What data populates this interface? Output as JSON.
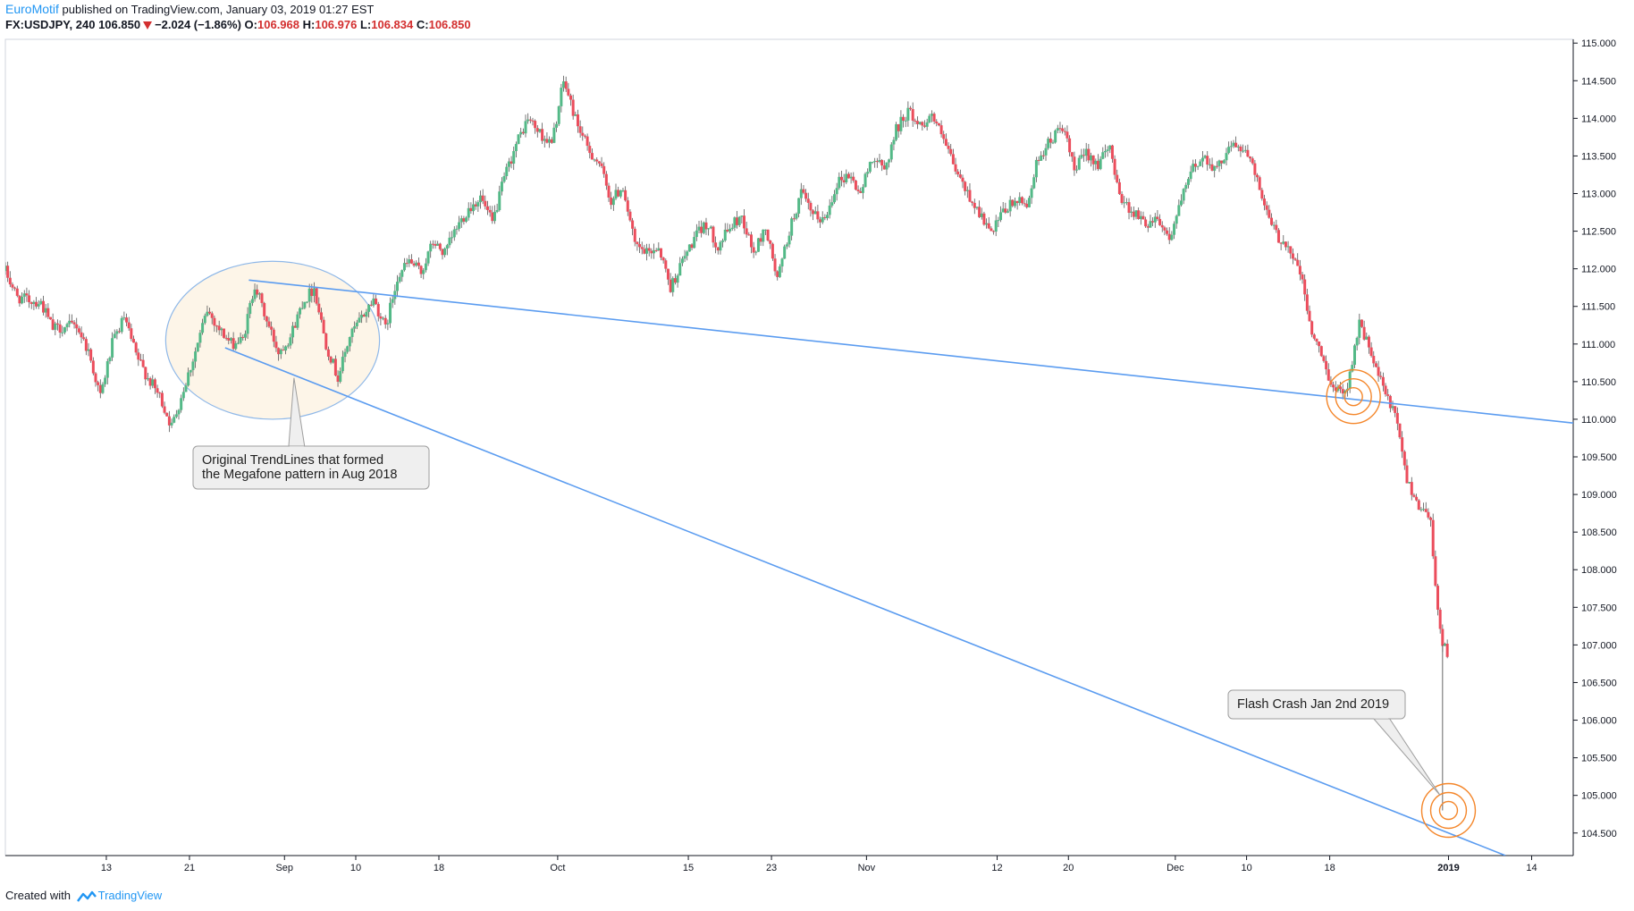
{
  "header": {
    "author": "EuroMotif",
    "published": "published on TradingView.com, January 03, 2019 01:27 EST",
    "symbol": "FX:USDJPY, 240",
    "last": "106.850",
    "change": "−2.024 (−1.86%)",
    "o_label": "O:",
    "o_value": "106.968",
    "h_label": "H:",
    "h_value": "106.976",
    "l_label": "L:",
    "l_value": "106.834",
    "c_label": "C:",
    "c_value": "106.850"
  },
  "footer": {
    "created_with": "Created with",
    "brand": "TradingView"
  },
  "colors": {
    "up": "#53b987",
    "down": "#eb4d5c",
    "trendline": "#5b9cf0",
    "ellipse_stroke": "#8fb8e8",
    "ellipse_fill": "#fdf5e8",
    "target": "#f4862a",
    "axis": "#131722",
    "callout_bg": "#efefef",
    "callout_border": "#9e9e9e"
  },
  "chart_data": {
    "type": "candlestick",
    "title": "FX:USDJPY, 240",
    "ylim": [
      104.2,
      115.05
    ],
    "y_ticks": [
      "115.000",
      "114.500",
      "114.000",
      "113.500",
      "113.000",
      "112.500",
      "112.000",
      "111.500",
      "111.000",
      "110.500",
      "110.000",
      "109.500",
      "109.000",
      "108.500",
      "108.000",
      "107.500",
      "107.000",
      "106.500",
      "106.000",
      "105.500",
      "105.000",
      "104.500"
    ],
    "x_ticks": [
      "13",
      "21",
      "Sep",
      "10",
      "18",
      "Oct",
      "15",
      "23",
      "Nov",
      "12",
      "20",
      "Dec",
      "10",
      "18",
      "2019",
      "14"
    ],
    "x_ticks_bold": [
      "2019"
    ],
    "x_tick_positions": [
      14.5,
      21.5,
      29.5,
      35.5,
      42.5,
      52.5,
      63.5,
      70.5,
      78.5,
      89.5,
      95.5,
      104.5,
      110.5,
      117.5,
      127.5,
      134.5
    ],
    "x_range": [
      6,
      138
    ],
    "path": [
      [
        6,
        111.97
      ],
      [
        7,
        111.62
      ],
      [
        9,
        111.55
      ],
      [
        10,
        111.2
      ],
      [
        12,
        111.25
      ],
      [
        13,
        110.9
      ],
      [
        14,
        110.3
      ],
      [
        15,
        111.0
      ],
      [
        16,
        111.35
      ],
      [
        17,
        110.85
      ],
      [
        18,
        110.55
      ],
      [
        19,
        110.3
      ],
      [
        20,
        109.9
      ],
      [
        21,
        110.4
      ],
      [
        22,
        110.9
      ],
      [
        23,
        111.45
      ],
      [
        24,
        111.2
      ],
      [
        25,
        111.0
      ],
      [
        26,
        111.05
      ],
      [
        27,
        111.8
      ],
      [
        28,
        111.3
      ],
      [
        29,
        110.9
      ],
      [
        30,
        111.1
      ],
      [
        31,
        111.55
      ],
      [
        32,
        111.75
      ],
      [
        33,
        111.0
      ],
      [
        34,
        110.55
      ],
      [
        35,
        111.1
      ],
      [
        36,
        111.35
      ],
      [
        37,
        111.6
      ],
      [
        38,
        111.2
      ],
      [
        39,
        111.9
      ],
      [
        40,
        112.1
      ],
      [
        41,
        111.95
      ],
      [
        42,
        112.35
      ],
      [
        43,
        112.2
      ],
      [
        44,
        112.55
      ],
      [
        45,
        112.8
      ],
      [
        46,
        112.95
      ],
      [
        47,
        112.6
      ],
      [
        48,
        113.2
      ],
      [
        49,
        113.65
      ],
      [
        50,
        114.0
      ],
      [
        51,
        113.8
      ],
      [
        52,
        113.65
      ],
      [
        53,
        114.5
      ],
      [
        54,
        114.0
      ],
      [
        55,
        113.6
      ],
      [
        56,
        113.4
      ],
      [
        57,
        112.9
      ],
      [
        58,
        113.1
      ],
      [
        59,
        112.3
      ],
      [
        60,
        112.2
      ],
      [
        61,
        112.3
      ],
      [
        62,
        111.75
      ],
      [
        63,
        112.1
      ],
      [
        64,
        112.4
      ],
      [
        65,
        112.6
      ],
      [
        66,
        112.3
      ],
      [
        67,
        112.55
      ],
      [
        68,
        112.7
      ],
      [
        69,
        112.2
      ],
      [
        70,
        112.55
      ],
      [
        71,
        111.85
      ],
      [
        72,
        112.5
      ],
      [
        73,
        113.0
      ],
      [
        74,
        112.7
      ],
      [
        75,
        112.65
      ],
      [
        76,
        113.15
      ],
      [
        77,
        113.25
      ],
      [
        78,
        113.0
      ],
      [
        79,
        113.5
      ],
      [
        80,
        113.3
      ],
      [
        81,
        113.85
      ],
      [
        82,
        114.1
      ],
      [
        83,
        113.9
      ],
      [
        84,
        114.05
      ],
      [
        85,
        113.7
      ],
      [
        86,
        113.3
      ],
      [
        87,
        113.0
      ],
      [
        88,
        112.75
      ],
      [
        89,
        112.45
      ],
      [
        90,
        112.75
      ],
      [
        91,
        112.9
      ],
      [
        92,
        112.85
      ],
      [
        93,
        113.5
      ],
      [
        94,
        113.7
      ],
      [
        95,
        113.9
      ],
      [
        96,
        113.3
      ],
      [
        97,
        113.55
      ],
      [
        98,
        113.4
      ],
      [
        99,
        113.6
      ],
      [
        100,
        112.9
      ],
      [
        101,
        112.75
      ],
      [
        102,
        112.6
      ],
      [
        103,
        112.7
      ],
      [
        104,
        112.4
      ],
      [
        105,
        112.9
      ],
      [
        106,
        113.35
      ],
      [
        107,
        113.5
      ],
      [
        108,
        113.3
      ],
      [
        109,
        113.65
      ],
      [
        110,
        113.6
      ],
      [
        111,
        113.45
      ],
      [
        112,
        112.8
      ],
      [
        113,
        112.45
      ],
      [
        114,
        112.3
      ],
      [
        115,
        111.95
      ],
      [
        116,
        111.15
      ],
      [
        117,
        110.75
      ],
      [
        118,
        110.35
      ],
      [
        119,
        110.45
      ],
      [
        120,
        111.3
      ],
      [
        121,
        110.85
      ],
      [
        122,
        110.4
      ],
      [
        123,
        110.05
      ],
      [
        124,
        109.2
      ],
      [
        125,
        108.85
      ],
      [
        126,
        108.7
      ],
      [
        126.5,
        107.55
      ],
      [
        127,
        107.0
      ],
      [
        127.5,
        106.9
      ]
    ],
    "crash_wick": {
      "x": 127.0,
      "low": 104.8
    },
    "trendlines": [
      {
        "name": "upper",
        "from": [
          26.5,
          111.85
        ],
        "to": [
          138,
          109.95
        ]
      },
      {
        "name": "lower",
        "from": [
          24.5,
          110.95
        ],
        "to": [
          132.3,
          104.2
        ]
      }
    ],
    "ellipse": {
      "center": [
        28.5,
        111.05
      ],
      "rx": 9.0,
      "ry": 1.05
    },
    "target_circles": [
      {
        "name": "breakout-target",
        "center": [
          119.5,
          110.3
        ]
      },
      {
        "name": "crash-target",
        "center": [
          127.5,
          104.8
        ]
      }
    ],
    "annotations": [
      {
        "name": "megafone-callout",
        "lines": [
          "Original TrendLines that formed",
          "the Megafone pattern in Aug 2018"
        ],
        "pointer_to": [
          30.3,
          110.55
        ]
      },
      {
        "name": "flash-crash-callout",
        "lines": [
          "Flash Crash Jan 2nd 2019"
        ],
        "pointer_to": [
          126.8,
          105.0
        ]
      }
    ]
  }
}
